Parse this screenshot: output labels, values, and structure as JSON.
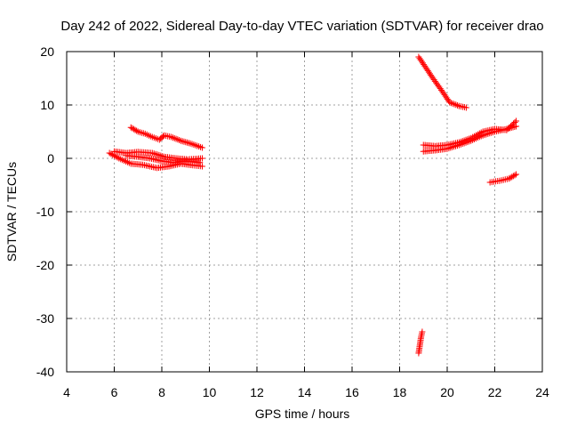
{
  "chart_data": {
    "type": "scatter",
    "title": "Day 242 of 2022, Sidereal Day-to-day VTEC variation (SDTVAR) for receiver drao",
    "xlabel": "GPS time / hours",
    "ylabel": "SDTVAR / TECUs",
    "xlim": [
      4,
      24
    ],
    "ylim": [
      -40,
      20
    ],
    "xticks": [
      4,
      6,
      8,
      10,
      12,
      14,
      16,
      18,
      20,
      22,
      24
    ],
    "yticks": [
      -40,
      -30,
      -20,
      -10,
      0,
      10,
      20
    ],
    "grid": true,
    "marker": "plus",
    "color": "#ff0000",
    "series": [
      {
        "segments": [
          [
            [
              5.8,
              1.0
            ],
            [
              6.2,
              0.0
            ],
            [
              6.7,
              -1.0
            ],
            [
              7.2,
              -1.2
            ],
            [
              7.8,
              -1.8
            ],
            [
              8.3,
              -1.5
            ],
            [
              8.8,
              -1.0
            ],
            [
              9.3,
              -1.3
            ],
            [
              9.7,
              -1.5
            ]
          ],
          [
            [
              6.0,
              1.3
            ],
            [
              6.5,
              1.0
            ],
            [
              7.0,
              1.2
            ],
            [
              7.6,
              1.0
            ],
            [
              8.1,
              0.3
            ],
            [
              8.6,
              0.0
            ],
            [
              9.1,
              -0.2
            ],
            [
              9.7,
              0.0
            ]
          ],
          [
            [
              6.5,
              0.5
            ],
            [
              7.0,
              0.3
            ],
            [
              7.5,
              0.0
            ],
            [
              8.0,
              -0.5
            ],
            [
              8.5,
              -0.8
            ],
            [
              9.0,
              -0.5
            ],
            [
              9.6,
              -0.8
            ]
          ],
          [
            [
              6.7,
              5.8
            ],
            [
              7.0,
              5.0
            ],
            [
              7.3,
              4.6
            ],
            [
              7.6,
              4.0
            ],
            [
              7.9,
              3.5
            ],
            [
              8.1,
              4.3
            ],
            [
              8.4,
              4.0
            ],
            [
              8.8,
              3.3
            ],
            [
              9.2,
              2.8
            ],
            [
              9.7,
              2.0
            ]
          ],
          [
            [
              18.8,
              19.0
            ],
            [
              19.1,
              17.0
            ],
            [
              19.4,
              15.0
            ],
            [
              19.8,
              12.5
            ],
            [
              20.1,
              10.5
            ],
            [
              20.5,
              9.8
            ],
            [
              20.8,
              9.5
            ]
          ],
          [
            [
              18.8,
              -36.5
            ],
            [
              18.85,
              -35.0
            ],
            [
              18.9,
              -33.5
            ],
            [
              18.95,
              -32.5
            ]
          ],
          [
            [
              19.0,
              2.5
            ],
            [
              19.5,
              2.3
            ],
            [
              20.0,
              2.5
            ],
            [
              20.5,
              3.0
            ],
            [
              21.0,
              3.8
            ],
            [
              21.5,
              5.0
            ],
            [
              22.0,
              5.5
            ],
            [
              22.5,
              5.3
            ],
            [
              22.9,
              7.0
            ]
          ],
          [
            [
              19.0,
              1.3
            ],
            [
              19.5,
              1.5
            ],
            [
              20.0,
              1.8
            ],
            [
              20.5,
              2.5
            ],
            [
              21.0,
              3.3
            ],
            [
              21.5,
              4.3
            ],
            [
              22.0,
              5.0
            ],
            [
              22.5,
              5.5
            ],
            [
              22.9,
              6.0
            ]
          ],
          [
            [
              21.8,
              -4.5
            ],
            [
              22.2,
              -4.2
            ],
            [
              22.6,
              -3.8
            ],
            [
              22.9,
              -3.0
            ]
          ]
        ]
      }
    ]
  }
}
